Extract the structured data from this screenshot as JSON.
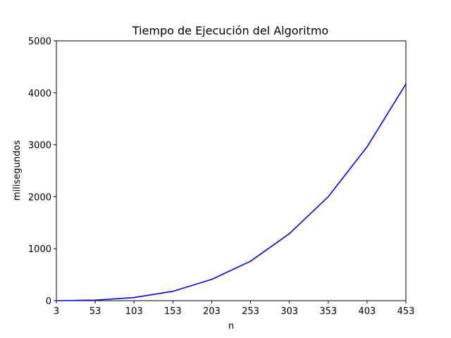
{
  "chart_data": {
    "type": "line",
    "title": "Tiempo de Ejecución del Algoritmo",
    "xlabel": "n",
    "ylabel": "milisegundos",
    "xlim": [
      3,
      453
    ],
    "ylim": [
      0,
      5000
    ],
    "xticks": [
      3,
      53,
      103,
      153,
      203,
      253,
      303,
      353,
      403,
      453
    ],
    "yticks": [
      0,
      1000,
      2000,
      3000,
      4000,
      5000
    ],
    "grid": false,
    "series": [
      {
        "color": "#0000ee",
        "x": [
          3,
          53,
          103,
          153,
          203,
          253,
          303,
          353,
          403,
          453
        ],
        "y": [
          0,
          10,
          60,
          180,
          410,
          760,
          1290,
          2000,
          2960,
          4170
        ]
      }
    ]
  }
}
